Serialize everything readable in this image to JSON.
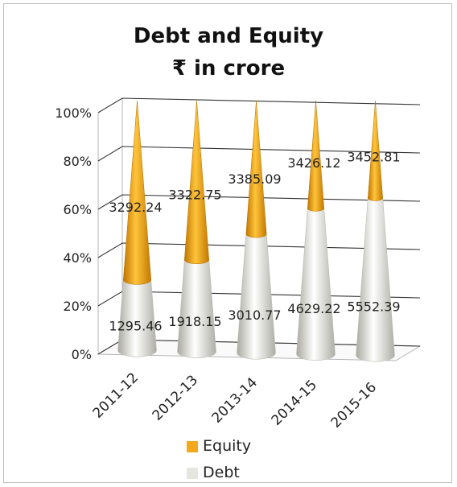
{
  "chart_data": {
    "type": "bar",
    "stacked": "100%",
    "shape": "cone-3d",
    "title": "Debt and Equity",
    "subtitle": "₹ in crore",
    "categories": [
      "2011-12",
      "2012-13",
      "2013-14",
      "2014-15",
      "2015-16"
    ],
    "series": [
      {
        "name": "Debt",
        "values": [
          1295.46,
          1918.15,
          3010.77,
          4629.22,
          5552.39
        ],
        "color": "#e6e6df"
      },
      {
        "name": "Equity",
        "values": [
          3292.24,
          3322.75,
          3385.09,
          3426.12,
          3452.81
        ],
        "color": "#f4a81c"
      }
    ],
    "y_ticks": [
      "0%",
      "20%",
      "40%",
      "60%",
      "80%",
      "100%"
    ],
    "ylim": [
      0,
      100
    ],
    "grid": true,
    "legend": "bottom"
  }
}
